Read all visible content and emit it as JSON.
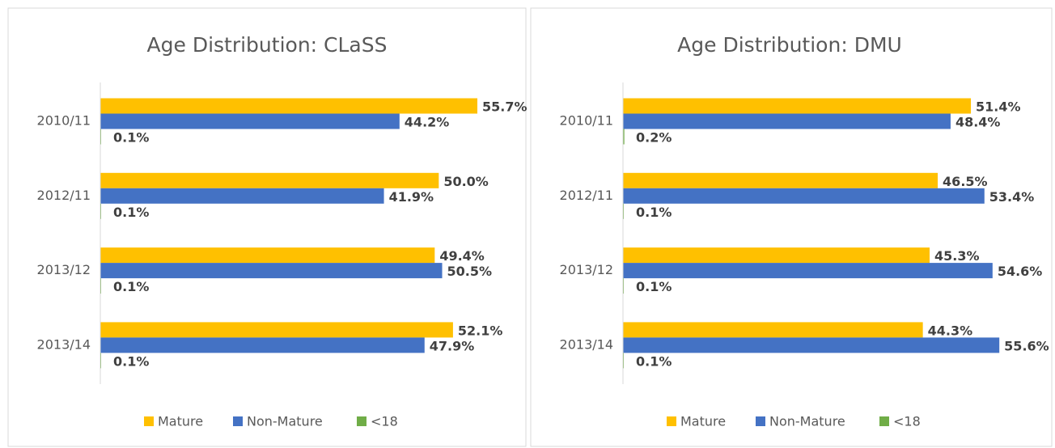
{
  "chart_data": [
    {
      "type": "bar",
      "orientation": "horizontal",
      "title": "Age Distribution: CLaSS",
      "categories": [
        "2010/11",
        "2012/11",
        "2013/12",
        "2013/14"
      ],
      "series": [
        {
          "name": "Mature",
          "color": "#ffc000",
          "values": [
            55.7,
            50.0,
            49.4,
            52.1
          ],
          "value_labels": [
            "55.7%",
            "50.0%",
            "49.4%",
            "52.1%"
          ]
        },
        {
          "name": "Non-Mature",
          "color": "#4472c4",
          "values": [
            44.2,
            41.9,
            50.5,
            47.9
          ],
          "value_labels": [
            "44.2%",
            "41.9%",
            "50.5%",
            "47.9%"
          ]
        },
        {
          "name": "<18",
          "color": "#70ad47",
          "values": [
            0.1,
            0.1,
            0.1,
            0.1
          ],
          "value_labels": [
            "0.1%",
            "0.1%",
            "0.1%",
            "0.1%"
          ]
        }
      ],
      "xlim": [
        0,
        60
      ],
      "legend": "bottom"
    },
    {
      "type": "bar",
      "orientation": "horizontal",
      "title": "Age Distribution: DMU",
      "categories": [
        "2010/11",
        "2012/11",
        "2013/12",
        "2013/14"
      ],
      "series": [
        {
          "name": "Mature",
          "color": "#ffc000",
          "values": [
            51.4,
            46.5,
            45.3,
            44.3
          ],
          "value_labels": [
            "51.4%",
            "46.5%",
            "45.3%",
            "44.3%"
          ]
        },
        {
          "name": "Non-Mature",
          "color": "#4472c4",
          "values": [
            48.4,
            53.4,
            54.6,
            55.6
          ],
          "value_labels": [
            "48.4%",
            "53.4%",
            "54.6%",
            "55.6%"
          ]
        },
        {
          "name": "<18",
          "color": "#70ad47",
          "values": [
            0.2,
            0.1,
            0.1,
            0.1
          ],
          "value_labels": [
            "0.2%",
            "0.1%",
            "0.1%",
            "0.1%"
          ]
        }
      ],
      "xlim": [
        0,
        60
      ],
      "legend": "bottom"
    }
  ]
}
